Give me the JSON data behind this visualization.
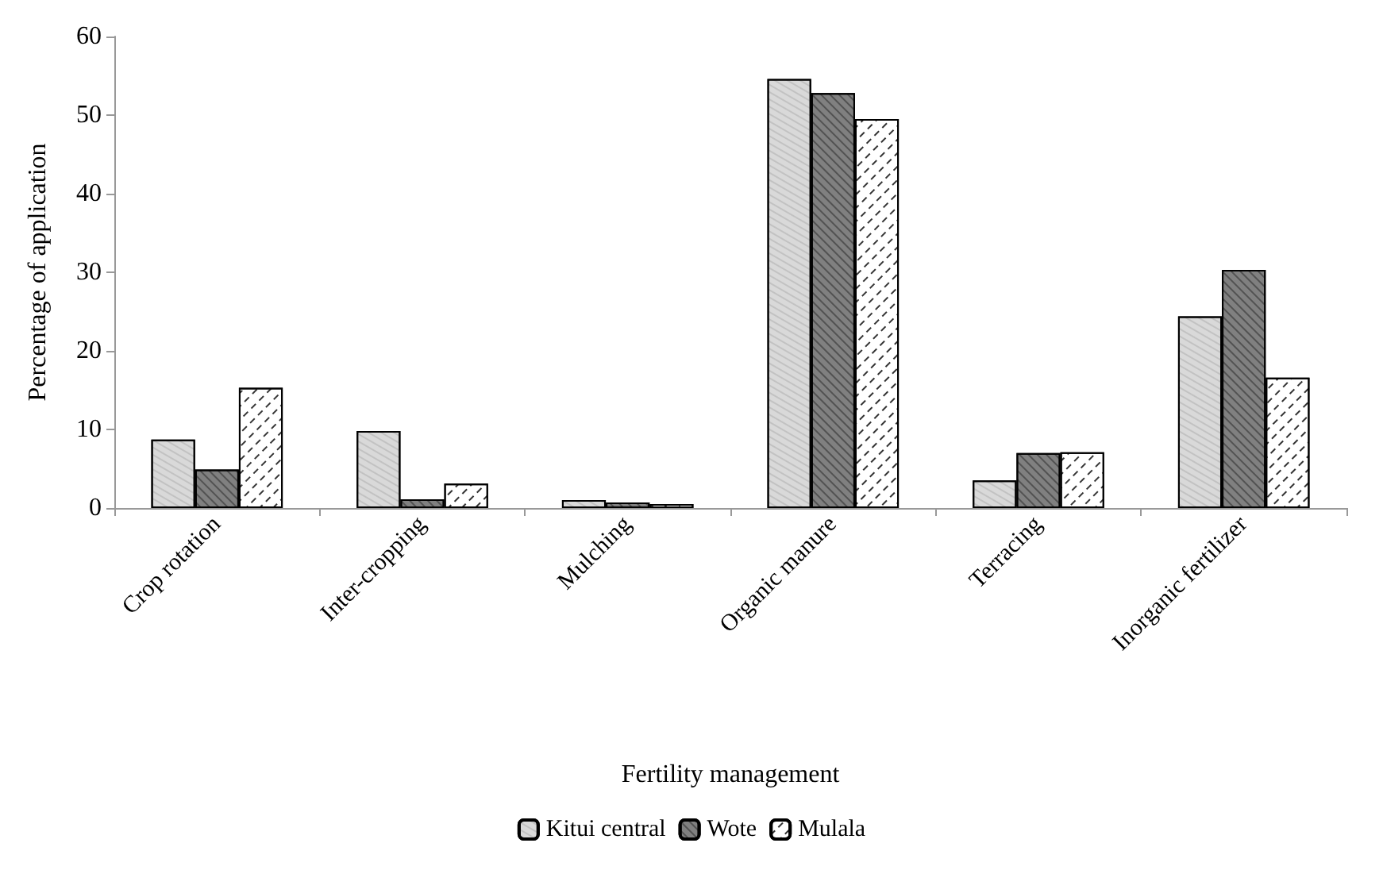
{
  "chart_data": {
    "type": "bar",
    "xlabel": "Fertility management",
    "ylabel": "Percentage of application",
    "categories": [
      "Crop rotation",
      "Inter-cropping",
      "Mulching",
      "Organic manure",
      "Terracing",
      "Inorganic fertilizer"
    ],
    "series": [
      {
        "name": "Kitui central",
        "color": "#d9d9d9",
        "values": [
          8.7,
          9.8,
          1.0,
          54.6,
          3.5,
          24.4
        ]
      },
      {
        "name": "Wote",
        "color": "#808080",
        "values": [
          4.9,
          1.1,
          0.7,
          52.8,
          7.0,
          30.3
        ]
      },
      {
        "name": "Mulala",
        "color": "#ffffff",
        "values": [
          15.3,
          3.1,
          0.5,
          49.5,
          7.1,
          16.6
        ]
      }
    ],
    "ylim": [
      0,
      60
    ],
    "yticks": [
      0,
      10,
      20,
      30,
      40,
      50,
      60
    ],
    "grid": false,
    "legend": "bottom"
  }
}
